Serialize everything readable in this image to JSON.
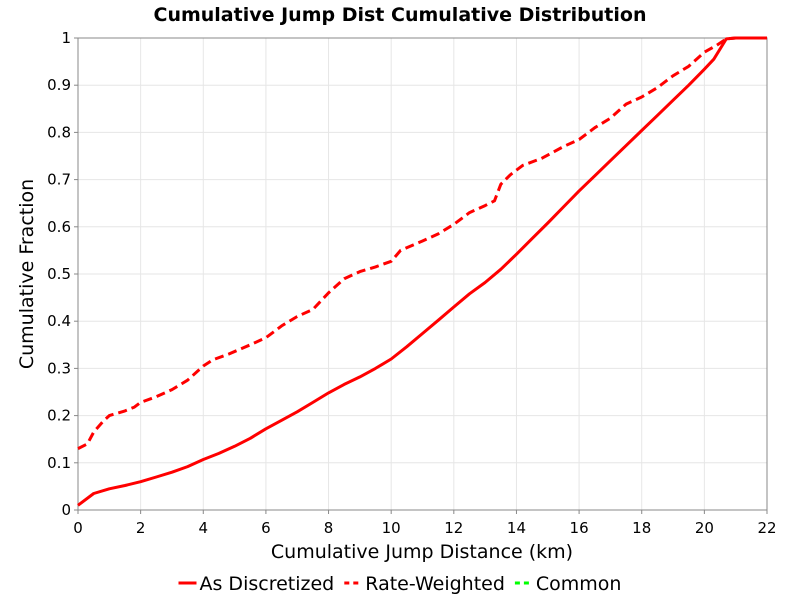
{
  "chart_data": {
    "type": "line",
    "title": "Cumulative Jump Dist Cumulative Distribution",
    "xlabel": "Cumulative Jump Distance (km)",
    "ylabel": "Cumulative Fraction",
    "xlim": [
      0,
      22
    ],
    "ylim": [
      0,
      1
    ],
    "xticks": [
      "0",
      "2",
      "4",
      "6",
      "8",
      "10",
      "12",
      "14",
      "16",
      "18",
      "20",
      "22"
    ],
    "yticks": [
      "0",
      "0.1",
      "0.2",
      "0.3",
      "0.4",
      "0.5",
      "0.6",
      "0.7",
      "0.8",
      "0.9",
      "1"
    ],
    "grid": true,
    "legend_position": "bottom",
    "series": [
      {
        "name": "As Discretized",
        "color": "#ff0000",
        "style": "solid",
        "x": [
          0,
          0.5,
          1,
          1.5,
          2,
          2.5,
          3,
          3.5,
          4,
          4.5,
          5,
          5.5,
          6,
          6.5,
          7,
          7.5,
          8,
          8.5,
          9,
          9.5,
          10,
          10.5,
          11,
          11.5,
          12,
          12.5,
          13,
          13.5,
          14,
          14.5,
          15,
          15.5,
          16,
          16.5,
          17,
          17.5,
          18,
          18.5,
          19,
          19.5,
          20,
          20.3,
          20.7,
          21,
          22
        ],
        "y": [
          0.01,
          0.035,
          0.045,
          0.052,
          0.06,
          0.07,
          0.08,
          0.092,
          0.107,
          0.12,
          0.135,
          0.152,
          0.172,
          0.19,
          0.208,
          0.228,
          0.248,
          0.266,
          0.282,
          0.3,
          0.32,
          0.346,
          0.374,
          0.402,
          0.43,
          0.458,
          0.482,
          0.51,
          0.542,
          0.575,
          0.608,
          0.642,
          0.676,
          0.708,
          0.74,
          0.772,
          0.804,
          0.836,
          0.868,
          0.9,
          0.934,
          0.955,
          0.998,
          1.0,
          1.0
        ]
      },
      {
        "name": "Rate-Weighted",
        "color": "#ff0000",
        "style": "dashed",
        "x": [
          0,
          0.3,
          0.5,
          0.8,
          1,
          1.5,
          1.8,
          2,
          2.5,
          3,
          3.5,
          4,
          4.3,
          4.8,
          5.5,
          6,
          6.5,
          7,
          7.5,
          8,
          8.5,
          9,
          9.5,
          10,
          10.3,
          11,
          11.5,
          12,
          12.5,
          13,
          13.3,
          13.5,
          13.8,
          14.2,
          14.8,
          15.5,
          16,
          16.5,
          17,
          17.5,
          18,
          18.5,
          19,
          19.5,
          20,
          20.4,
          20.7,
          21,
          22
        ],
        "y": [
          0.13,
          0.14,
          0.165,
          0.188,
          0.2,
          0.21,
          0.218,
          0.228,
          0.24,
          0.255,
          0.275,
          0.305,
          0.318,
          0.33,
          0.35,
          0.365,
          0.39,
          0.41,
          0.425,
          0.46,
          0.49,
          0.505,
          0.515,
          0.527,
          0.55,
          0.57,
          0.585,
          0.605,
          0.63,
          0.645,
          0.655,
          0.69,
          0.71,
          0.73,
          0.745,
          0.77,
          0.785,
          0.81,
          0.83,
          0.86,
          0.875,
          0.895,
          0.92,
          0.94,
          0.97,
          0.985,
          0.998,
          1.0,
          1.0
        ]
      },
      {
        "name": "Common",
        "color": "#00ff00",
        "style": "dashed",
        "x": [],
        "y": []
      }
    ]
  }
}
